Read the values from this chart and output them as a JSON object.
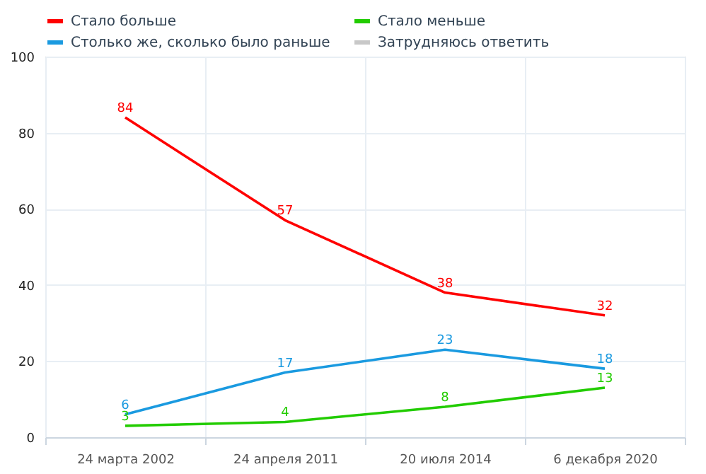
{
  "chart_data": {
    "type": "line",
    "categories": [
      "24 марта 2002",
      "24 апреля 2011",
      "20 июля 2014",
      "6 декабря 2020"
    ],
    "series": [
      {
        "name": "Стало больше",
        "color": "#ff0000",
        "values": [
          84,
          57,
          38,
          32
        ]
      },
      {
        "name": "Стало меньше",
        "color": "#22cc00",
        "values": [
          3,
          4,
          8,
          13
        ]
      },
      {
        "name": "Столько же, сколько было раньше",
        "color": "#1a9ae0",
        "values": [
          6,
          17,
          23,
          18
        ]
      },
      {
        "name": "Затрудняюсь ответить",
        "color": "#c8c8c8",
        "values": [
          null,
          null,
          null,
          null
        ]
      }
    ],
    "ylim": [
      0,
      100
    ],
    "yticks": [
      0,
      20,
      40,
      60,
      80,
      100
    ],
    "grid": true,
    "legend": "top",
    "data_labels": true,
    "marker": "none",
    "line_style": "solid"
  }
}
